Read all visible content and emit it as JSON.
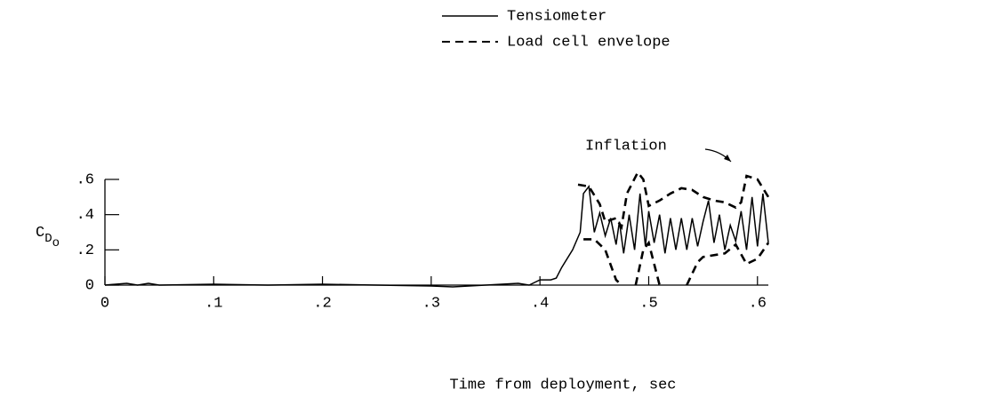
{
  "chart_data": {
    "type": "line",
    "xlabel": "Time from deployment, sec",
    "ylabel_parts": [
      "C",
      "D",
      "o"
    ],
    "annotation": "Inflation",
    "xlim": [
      0,
      0.61
    ],
    "ylim": [
      0,
      0.6
    ],
    "xticks": [
      0,
      {
        "value": 0.1,
        "label": ".1"
      },
      {
        "value": 0.2,
        "label": ".2"
      },
      {
        "value": 0.3,
        "label": ".3"
      },
      {
        "value": 0.4,
        "label": ".4"
      },
      {
        "value": 0.5,
        "label": ".5"
      },
      {
        "value": 0.6,
        "label": ".6"
      }
    ],
    "yticks": [
      0,
      {
        "value": 0.2,
        "label": ".2"
      },
      {
        "value": 0.4,
        "label": ".4"
      },
      {
        "value": 0.6,
        "label": ".6"
      }
    ],
    "legend": "top",
    "series": [
      {
        "name": "Tensiometer",
        "color": "#000000",
        "dash": "solid",
        "x": [
          0,
          0.02,
          0.03,
          0.04,
          0.05,
          0.1,
          0.15,
          0.2,
          0.25,
          0.3,
          0.32,
          0.35,
          0.38,
          0.39,
          0.4,
          0.41,
          0.415,
          0.42,
          0.43,
          0.437,
          0.44,
          0.445,
          0.45,
          0.455,
          0.46,
          0.465,
          0.47,
          0.473,
          0.477,
          0.482,
          0.487,
          0.492,
          0.497,
          0.5,
          0.505,
          0.51,
          0.515,
          0.52,
          0.525,
          0.53,
          0.535,
          0.54,
          0.545,
          0.55,
          0.555,
          0.56,
          0.565,
          0.57,
          0.575,
          0.58,
          0.585,
          0.59,
          0.595,
          0.6,
          0.605,
          0.61
        ],
        "values": [
          0,
          0.01,
          0,
          0.01,
          0,
          0.005,
          0,
          0.005,
          0,
          -0.005,
          -0.01,
          0,
          0.01,
          0,
          0.03,
          0.03,
          0.04,
          0.1,
          0.2,
          0.3,
          0.52,
          0.56,
          0.3,
          0.41,
          0.28,
          0.38,
          0.23,
          0.36,
          0.18,
          0.4,
          0.2,
          0.52,
          0.22,
          0.42,
          0.24,
          0.4,
          0.18,
          0.38,
          0.2,
          0.38,
          0.2,
          0.38,
          0.22,
          0.36,
          0.48,
          0.24,
          0.4,
          0.2,
          0.34,
          0.25,
          0.42,
          0.2,
          0.5,
          0.22,
          0.52,
          0.24
        ]
      },
      {
        "name": "Load cell envelope",
        "color": "#000000",
        "dash": "dashed",
        "x": [
          0.435,
          0.445,
          0.455,
          0.46,
          0.47,
          0.475,
          0.48,
          0.49,
          0.495,
          0.5,
          0.51,
          0.52,
          0.53,
          0.54,
          0.55,
          0.56,
          0.57,
          0.58,
          0.585,
          0.59,
          0.6,
          0.61,
          0.61,
          0.44,
          0.45,
          0.46,
          0.47,
          0.475,
          0.475,
          0.488,
          0.495,
          0.5,
          0.51,
          0.51,
          0.535,
          0.545,
          0.55,
          0.57,
          0.58,
          0.59,
          0.6,
          0.61
        ],
        "values": [
          0.57,
          0.56,
          0.46,
          0.36,
          0.38,
          0.33,
          0.52,
          0.64,
          0.6,
          0.45,
          0.48,
          0.52,
          0.55,
          0.54,
          0.5,
          0.48,
          0.47,
          0.44,
          0.47,
          0.62,
          0.6,
          0.5,
          null,
          0.26,
          0.26,
          0.2,
          0.03,
          0,
          null,
          0,
          0.2,
          0.24,
          0,
          null,
          0,
          0.13,
          0.16,
          0.18,
          0.23,
          0.12,
          0.15,
          0.24
        ]
      }
    ]
  }
}
